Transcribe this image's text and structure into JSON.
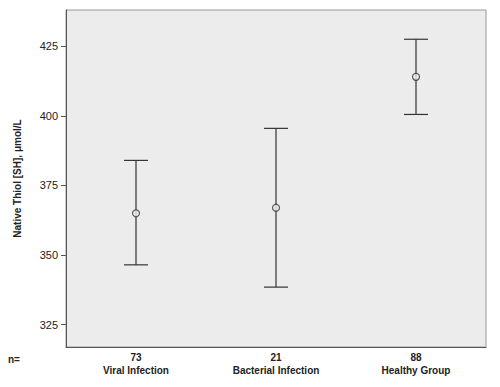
{
  "chart_data": {
    "type": "errorbar",
    "y_label": "Native Thiol [SH], μmol/L",
    "categories": [
      "Viral Infection",
      "Bacterial Infection",
      "Healthy Group"
    ],
    "values": [
      365,
      367,
      414
    ],
    "error_low": [
      346.5,
      338.5,
      400.5
    ],
    "error_high": [
      384,
      395.5,
      427.5
    ],
    "n_label": "n=",
    "n": [
      73,
      21,
      88
    ],
    "ylim": [
      317,
      438
    ],
    "yticks": [
      325,
      350,
      375,
      400,
      425
    ],
    "grid": false,
    "marker": "circle",
    "color": "#333333"
  }
}
